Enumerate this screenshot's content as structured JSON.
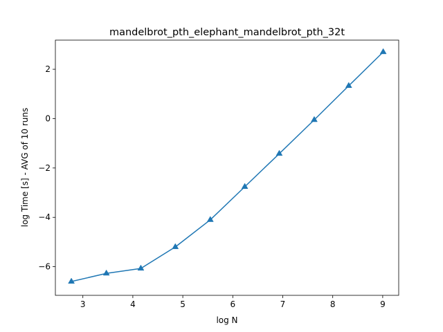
{
  "chart_data": {
    "type": "line",
    "title": "mandelbrot_pth_elephant_mandelbrot_pth_32t",
    "xlabel": "log N",
    "ylabel": "log Time  [s] - AVG of 10 runs",
    "xlim": [
      2.45,
      9.32
    ],
    "ylim": [
      -7.16,
      3.18
    ],
    "xticks": [
      3,
      4,
      5,
      6,
      7,
      8,
      9
    ],
    "yticks": [
      -6,
      -4,
      -2,
      0,
      2
    ],
    "grid": false,
    "marker": "triangle-up",
    "series": [
      {
        "color": "#1f77b4",
        "x": [
          2.77,
          3.47,
          4.16,
          4.85,
          5.55,
          6.24,
          6.93,
          7.63,
          8.32,
          9.01
        ],
        "y": [
          -6.6,
          -6.27,
          -6.07,
          -5.2,
          -4.1,
          -2.76,
          -1.42,
          -0.05,
          1.33,
          2.7
        ]
      }
    ]
  }
}
